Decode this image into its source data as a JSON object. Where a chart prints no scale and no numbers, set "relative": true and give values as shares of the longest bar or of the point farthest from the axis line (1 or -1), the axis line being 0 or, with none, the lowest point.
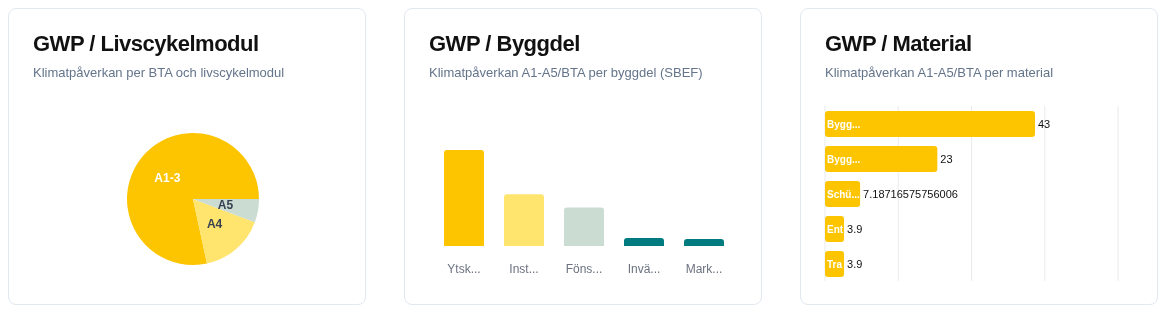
{
  "chart_data": [
    {
      "type": "pie",
      "title": "GWP / Livscykelmodul",
      "subtitle": "Klimatpåverkan per BTA och livscykelmodul",
      "categories": [
        "A1-3",
        "A4",
        "A5"
      ],
      "values": [
        78.4,
        15.9,
        5.7
      ],
      "colors": [
        "#fdc500",
        "#ffe46e",
        "#cbdcd2"
      ]
    },
    {
      "type": "bar",
      "title": "GWP / Byggdel",
      "subtitle": "Klimatpåverkan A1-A5/BTA per byggdel (SBEF)",
      "categories": [
        "Ytsk...",
        "Inst...",
        "Föns...",
        "Invä...",
        "Mark..."
      ],
      "values": [
        1,
        0.54,
        0.4,
        0.083,
        0.073
      ],
      "colors": [
        "#fdc500",
        "#ffe46e",
        "#cbdcd2",
        "#007c80",
        "#007c80"
      ],
      "relative": true
    },
    {
      "type": "bar",
      "orientation": "horizontal",
      "title": "GWP / Material",
      "subtitle": "Klimatpåverkan A1-A5/BTA per material",
      "categories": [
        "Bygg...",
        "Bygg...",
        "Schü...",
        "Ent",
        "Tra"
      ],
      "values": [
        43,
        23,
        7.18716575756006,
        3.9,
        3.9
      ],
      "color": "#fdc500",
      "data_labels": true,
      "xlim": [
        0,
        60
      ],
      "xticks": [
        {
          "value": 0,
          "label": null
        },
        {
          "value": 15,
          "label": null
        },
        {
          "value": 30,
          "label": null
        },
        {
          "value": 45,
          "label": null
        },
        {
          "value": 60,
          "label": null
        }
      ],
      "grid": "x",
      "tick_labels": "y"
    }
  ]
}
